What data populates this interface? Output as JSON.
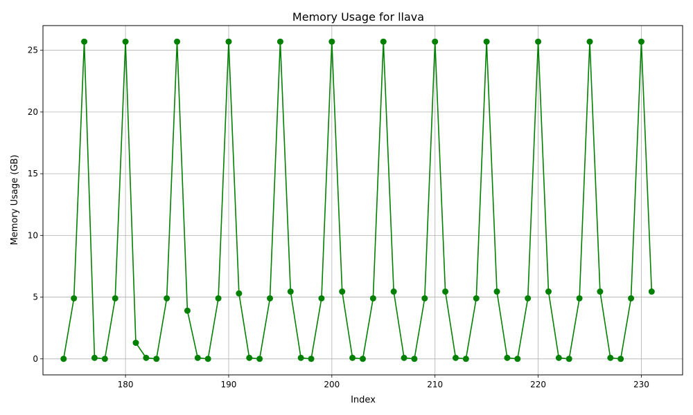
{
  "chart_data": {
    "type": "line",
    "title": "Memory Usage for llava",
    "xlabel": "Index",
    "ylabel": "Memory Usage (GB)",
    "xlim": [
      172,
      234
    ],
    "ylim": [
      -1.3,
      27
    ],
    "xticks": [
      180,
      190,
      200,
      210,
      220,
      230
    ],
    "yticks": [
      0,
      5,
      10,
      15,
      20,
      25
    ],
    "grid": true,
    "legend": "none",
    "series": [
      {
        "color": "#008000",
        "marker": "circle",
        "x": [
          174,
          175,
          176,
          177,
          178,
          179,
          180,
          181,
          182,
          183,
          184,
          185,
          186,
          187,
          188,
          189,
          190,
          191,
          192,
          193,
          194,
          195,
          196,
          197,
          198,
          199,
          200,
          201,
          202,
          203,
          204,
          205,
          206,
          207,
          208,
          209,
          210,
          211,
          212,
          213,
          214,
          215,
          216,
          217,
          218,
          219,
          220,
          221,
          222,
          223,
          224,
          225,
          226,
          227,
          228,
          229,
          230,
          231
        ],
        "y": [
          0.0,
          4.9,
          25.7,
          0.08,
          0.0,
          4.9,
          25.7,
          1.3,
          0.08,
          0.0,
          4.9,
          25.7,
          3.9,
          0.08,
          0.0,
          4.9,
          25.7,
          5.3,
          0.08,
          0.0,
          4.9,
          25.7,
          5.45,
          0.08,
          0.0,
          4.9,
          25.7,
          5.45,
          0.08,
          0.0,
          4.9,
          25.7,
          5.45,
          0.08,
          0.0,
          4.9,
          25.7,
          5.45,
          0.08,
          0.0,
          4.9,
          25.7,
          5.45,
          0.08,
          0.0,
          4.9,
          25.7,
          5.45,
          0.08,
          0.0,
          4.9,
          25.7,
          5.45,
          0.08,
          0.0,
          4.9,
          25.7,
          5.45
        ]
      }
    ]
  }
}
